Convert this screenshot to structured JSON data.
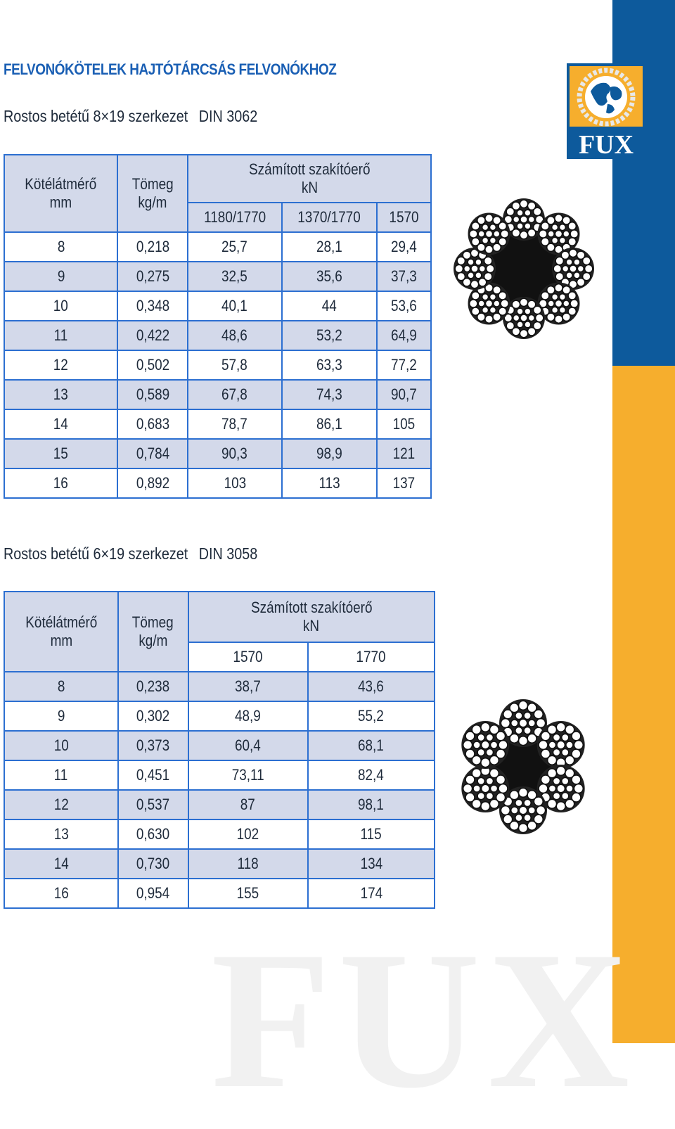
{
  "title": "FELVONÓKÖTELEK HAJTÓTÁRCSÁS FELVONÓKHOZ",
  "logo_text": "FUX",
  "watermark_text": "FUX",
  "colors": {
    "accent_blue": "#0d5a9c",
    "accent_yellow": "#f6ae2d",
    "title_blue": "#1a5fb4",
    "row_shade": "#d3d9ea",
    "grid": "#2c6fd1"
  },
  "section1": {
    "heading": "Rostos betétű 8×19 szerkezet",
    "din": "DIN 3062",
    "col_diameter": "Kötélátmérő",
    "col_diameter_unit": "mm",
    "col_mass": "Tömeg",
    "col_mass_unit": "kg/m",
    "col_force": "Számított szakítóerő",
    "col_force_unit": "kN",
    "grades": [
      "1180/1770",
      "1370/1770",
      "1570"
    ],
    "rows": [
      [
        "8",
        "0,218",
        "25,7",
        "28,1",
        "29,4"
      ],
      [
        "9",
        "0,275",
        "32,5",
        "35,6",
        "37,3"
      ],
      [
        "10",
        "0,348",
        "40,1",
        "44",
        "53,6"
      ],
      [
        "11",
        "0,422",
        "48,6",
        "53,2",
        "64,9"
      ],
      [
        "12",
        "0,502",
        "57,8",
        "63,3",
        "77,2"
      ],
      [
        "13",
        "0,589",
        "67,8",
        "74,3",
        "90,7"
      ],
      [
        "14",
        "0,683",
        "78,7",
        "86,1",
        "105"
      ],
      [
        "15",
        "0,784",
        "90,3",
        "98,9",
        "121"
      ],
      [
        "16",
        "0,892",
        "103",
        "113",
        "137"
      ]
    ]
  },
  "section2": {
    "heading": "Rostos betétű 6×19 szerkezet",
    "din": "DIN 3058",
    "col_diameter": "Kötélátmérő",
    "col_diameter_unit": "mm",
    "col_mass": "Tömeg",
    "col_mass_unit": "kg/m",
    "col_force": "Számított szakítóerő",
    "col_force_unit": "kN",
    "grades": [
      "1570",
      "1770"
    ],
    "rows": [
      [
        "8",
        "0,238",
        "38,7",
        "43,6"
      ],
      [
        "9",
        "0,302",
        "48,9",
        "55,2"
      ],
      [
        "10",
        "0,373",
        "60,4",
        "68,1"
      ],
      [
        "11",
        "0,451",
        "73,11",
        "82,4"
      ],
      [
        "12",
        "0,537",
        "87",
        "98,1"
      ],
      [
        "13",
        "0,630",
        "102",
        "115"
      ],
      [
        "14",
        "0,730",
        "118",
        "134"
      ],
      [
        "16",
        "0,954",
        "155",
        "174"
      ]
    ]
  }
}
